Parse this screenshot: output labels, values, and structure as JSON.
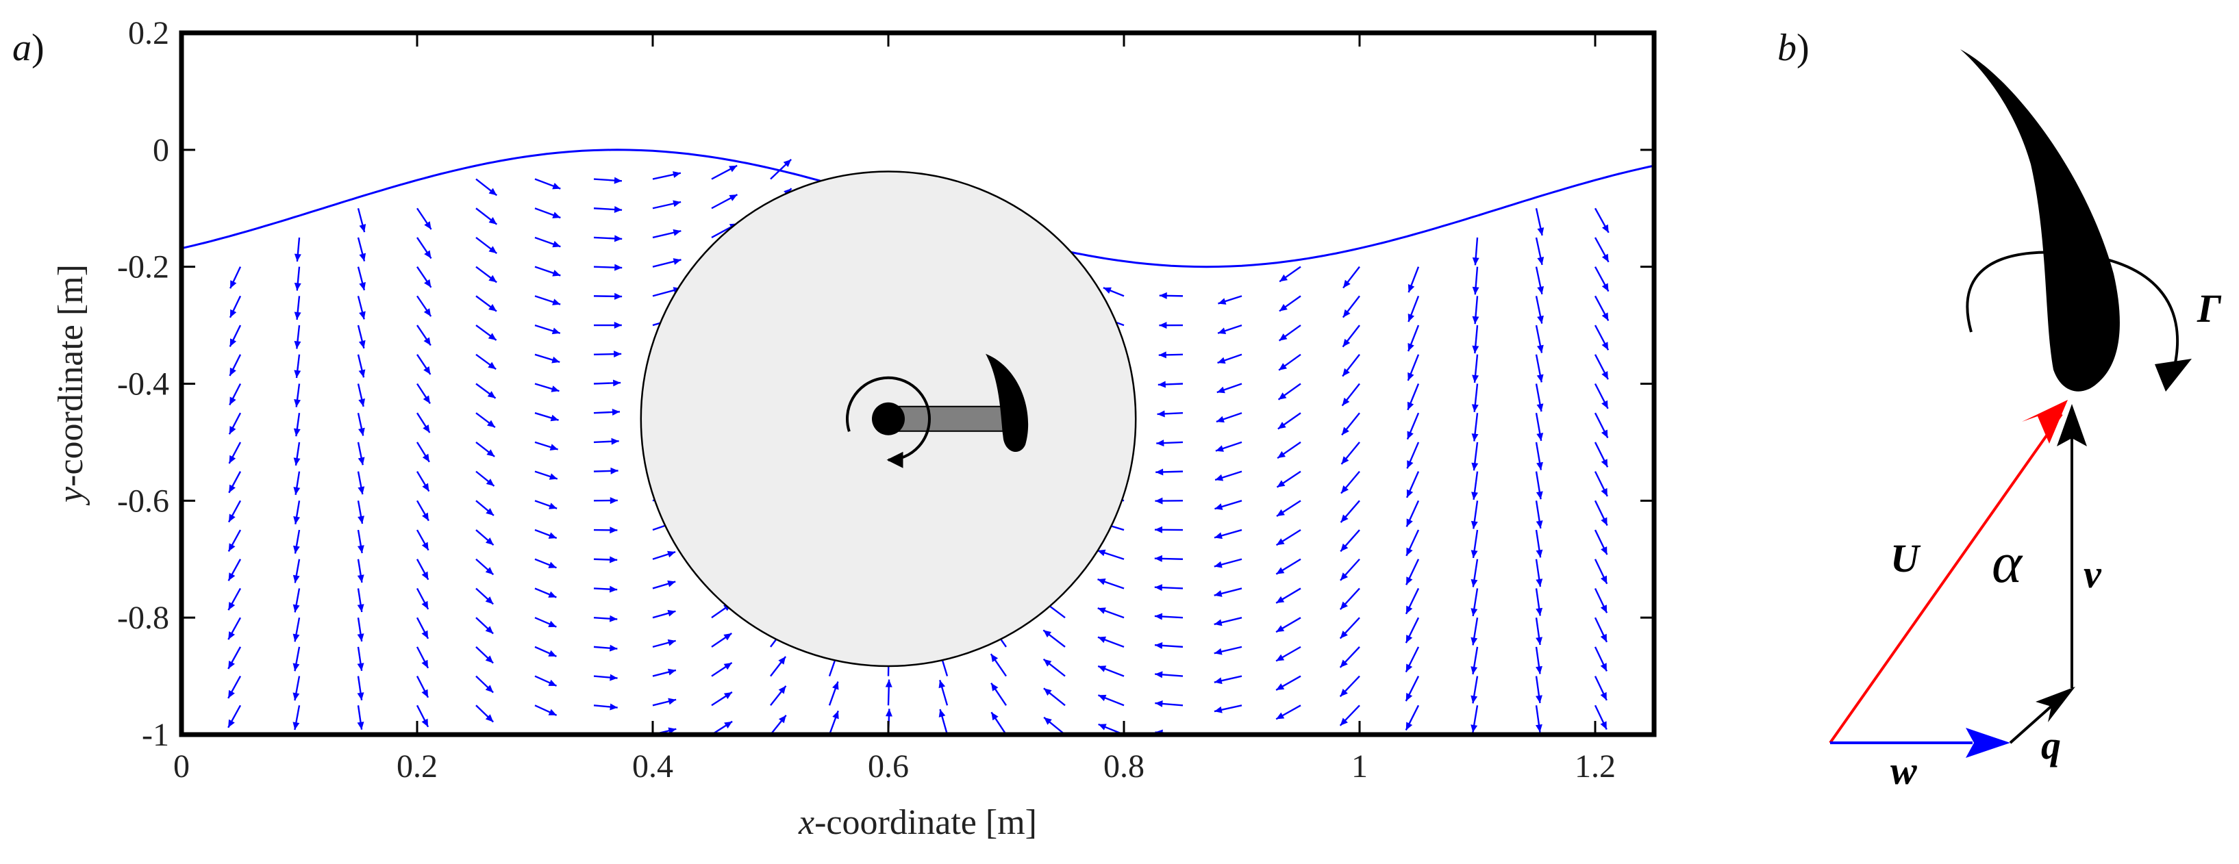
{
  "panel_a": {
    "label": "a",
    "label_paren": ")",
    "xlabel_var": "x",
    "xlabel_rest": "-coordinate [m]",
    "ylabel_var": "y",
    "ylabel_rest": "-coordinate [m]",
    "xlim": [
      0,
      1.25
    ],
    "ylim": [
      -1,
      0.2
    ],
    "x_ticks": [
      {
        "value": 0,
        "label": "0"
      },
      {
        "value": 0.2,
        "label": "0.2"
      },
      {
        "value": 0.4,
        "label": "0.4"
      },
      {
        "value": 0.6,
        "label": "0.6"
      },
      {
        "value": 0.8,
        "label": "0.8"
      },
      {
        "value": 1,
        "label": "1"
      },
      {
        "value": 1.2,
        "label": "1.2"
      }
    ],
    "y_ticks": [
      {
        "value": 0.2,
        "label": "0.2"
      },
      {
        "value": 0,
        "label": "0"
      },
      {
        "value": -0.2,
        "label": "-0.2"
      },
      {
        "value": -0.4,
        "label": "-0.4"
      },
      {
        "value": -0.6,
        "label": "-0.6"
      },
      {
        "value": -0.8,
        "label": "-0.8"
      },
      {
        "value": -1,
        "label": "-1"
      }
    ],
    "wave": {
      "mean": -0.1,
      "amplitude": 0.1,
      "wavelength": 1.0,
      "crest_x": 0.37
    },
    "rotor": {
      "center": [
        0.6,
        -0.46
      ],
      "radius": 0.21,
      "blade_x": 0.7
    },
    "colors": {
      "vectors": "#0000ff",
      "wave": "#0000ff",
      "rotor_disk": "#eeeeee",
      "arm": "#808080"
    }
  },
  "panel_b": {
    "label": "b",
    "label_paren": ")",
    "labels": {
      "U": "U",
      "alpha": "α",
      "v": "v",
      "w": "w",
      "q": "q",
      "Gamma": "Γ"
    },
    "colors": {
      "U": "#ff0000",
      "w": "#0000ff",
      "v": "#000000",
      "q": "#000000"
    }
  }
}
